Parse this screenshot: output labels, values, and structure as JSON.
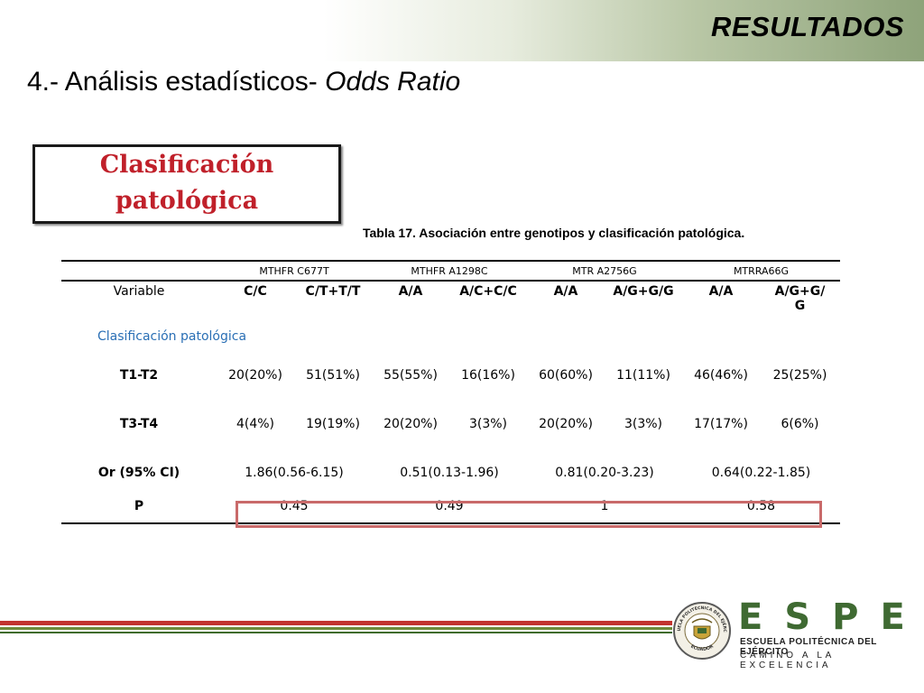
{
  "header": {
    "section_title": "RESULTADOS",
    "title_main": "4.- Análisis estadísticos- ",
    "title_italic": "Odds Ratio"
  },
  "callout": {
    "line1": "Clasificación",
    "line2": "patológica"
  },
  "table": {
    "caption": "Tabla 17. Asociación entre genotipos y clasificación patológica.",
    "genes": [
      "MTHFR C677T",
      "MTHFR A1298C",
      "MTR A2756G",
      "MTRRA66G"
    ],
    "variable_label": "Variable",
    "columns": [
      "C/C",
      "C/T+T/T",
      "A/A",
      "A/C+C/C",
      "A/A",
      "A/G+G/G",
      "A/A",
      "A/G+G/"
    ],
    "last_column_suffix": "G",
    "section_label": "Clasificación patológica",
    "rows": [
      {
        "label": "T1-T2",
        "values": [
          "20(20%)",
          "51(51%)",
          "55(55%)",
          "16(16%)",
          "60(60%)",
          "11(11%)",
          "46(46%)",
          "25(25%)"
        ]
      },
      {
        "label": "T3-T4",
        "values": [
          "4(4%)",
          "19(19%)",
          "20(20%)",
          "3(3%)",
          "20(20%)",
          "3(3%)",
          "17(17%)",
          "6(6%)"
        ]
      }
    ],
    "or_label": "Or (95% CI)",
    "or_values": [
      "1.86(0.56-6.15)",
      "0.51(0.13-1.96)",
      "0.81(0.20-3.23)",
      "0.64(0.22-1.85)"
    ],
    "p_label": "P",
    "p_values": [
      "0.45",
      "0.49",
      "1",
      "0.58"
    ]
  },
  "footer": {
    "logo_text": "ESPE",
    "institution": "ESCUELA POLITÉCNICA DEL EJÉRCITO",
    "motto": "CAMINO A LA EXCELENCIA",
    "seal_text_top": "ESCUELA POLITÉCNICA DEL EJÉRCITO",
    "seal_text_bottom": "ECUADOR"
  },
  "colors": {
    "callout_text": "#c0202a",
    "section_label": "#2a6fb5",
    "brand_green": "#3f6a32",
    "highlight_border": "#c96a6a"
  }
}
